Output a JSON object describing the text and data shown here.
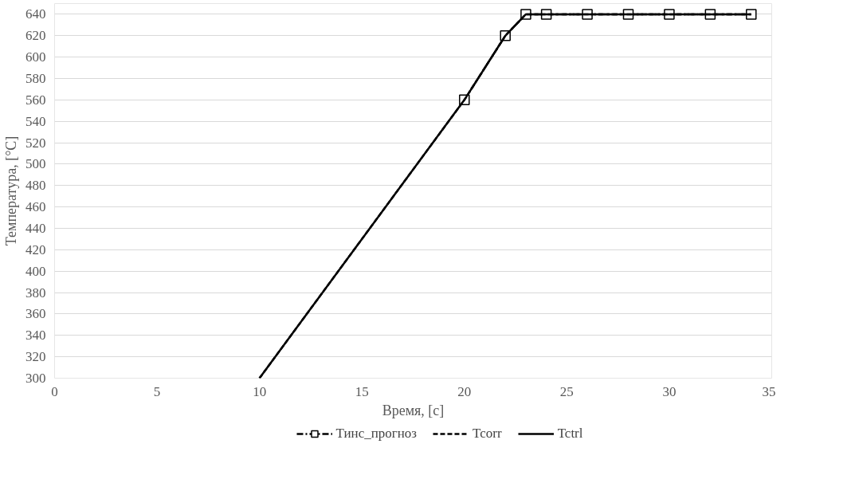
{
  "chart_data": {
    "type": "line",
    "xlabel": "Время, [c]",
    "ylabel": "Температура, [°C]",
    "xlim": [
      0,
      35
    ],
    "xticks": [
      0,
      5,
      10,
      15,
      20,
      25,
      30,
      35
    ],
    "ylim": [
      300,
      650
    ],
    "yticks": [
      300,
      320,
      340,
      360,
      380,
      400,
      420,
      440,
      460,
      480,
      500,
      520,
      540,
      560,
      580,
      600,
      620,
      640
    ],
    "grid": "y",
    "legend": "bottom",
    "series": [
      {
        "name": "Тинс_прогноз",
        "color": "#000000",
        "marker": "square",
        "line_style": "dashdot",
        "x": [
          20,
          22,
          23,
          24,
          26,
          28,
          30,
          32,
          34
        ],
        "values": [
          560,
          620,
          640,
          640,
          640,
          640,
          640,
          640,
          640
        ]
      },
      {
        "name": "Tcorr",
        "color": "#000000",
        "marker": "none",
        "line_style": "dashed",
        "x": [
          10,
          20,
          22,
          23,
          24,
          26,
          28,
          30,
          32,
          34
        ],
        "values": [
          300,
          560,
          620,
          640,
          640,
          640,
          640,
          640,
          640,
          640
        ]
      },
      {
        "name": "Tctrl",
        "color": "#000000",
        "marker": "none",
        "line_style": "solid",
        "x": [
          10,
          20,
          22,
          23,
          24,
          26,
          28,
          30,
          32,
          34
        ],
        "values": [
          300,
          560,
          620,
          640,
          640,
          640,
          640,
          640,
          640,
          640
        ]
      }
    ]
  }
}
